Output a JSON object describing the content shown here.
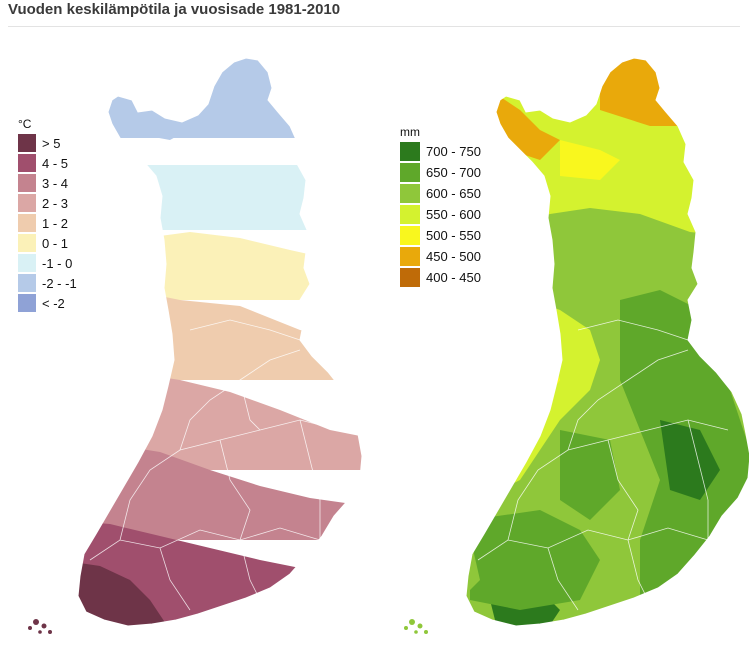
{
  "page": {
    "title": "Vuoden keskilämpötila ja vuosisade 1981-2010"
  },
  "temperature_map": {
    "unit": "°C",
    "legend": [
      {
        "label": "> 5",
        "color": "#6e3448"
      },
      {
        "label": "4 - 5",
        "color": "#a04f6d"
      },
      {
        "label": "3 - 4",
        "color": "#c4838f"
      },
      {
        "label": "2 - 3",
        "color": "#dba7a5"
      },
      {
        "label": "1 - 2",
        "color": "#efccae"
      },
      {
        "label": "0 - 1",
        "color": "#fbf1b8"
      },
      {
        "label": "-1 - 0",
        "color": "#d9f1f5"
      },
      {
        "label": "-2 - -1",
        "color": "#b5cae8"
      },
      {
        "label": "< -2",
        "color": "#8fa2d6"
      }
    ]
  },
  "precipitation_map": {
    "unit": "mm",
    "legend": [
      {
        "label": "700 - 750",
        "color": "#2c7a1d"
      },
      {
        "label": "650 - 700",
        "color": "#5fa82a"
      },
      {
        "label": "600 - 650",
        "color": "#8fc73a"
      },
      {
        "label": "550 - 600",
        "color": "#d4f22f"
      },
      {
        "label": "500 - 550",
        "color": "#f9f71e"
      },
      {
        "label": "450 - 500",
        "color": "#e9a90b"
      },
      {
        "label": "400 - 450",
        "color": "#bf6b08"
      }
    ]
  }
}
